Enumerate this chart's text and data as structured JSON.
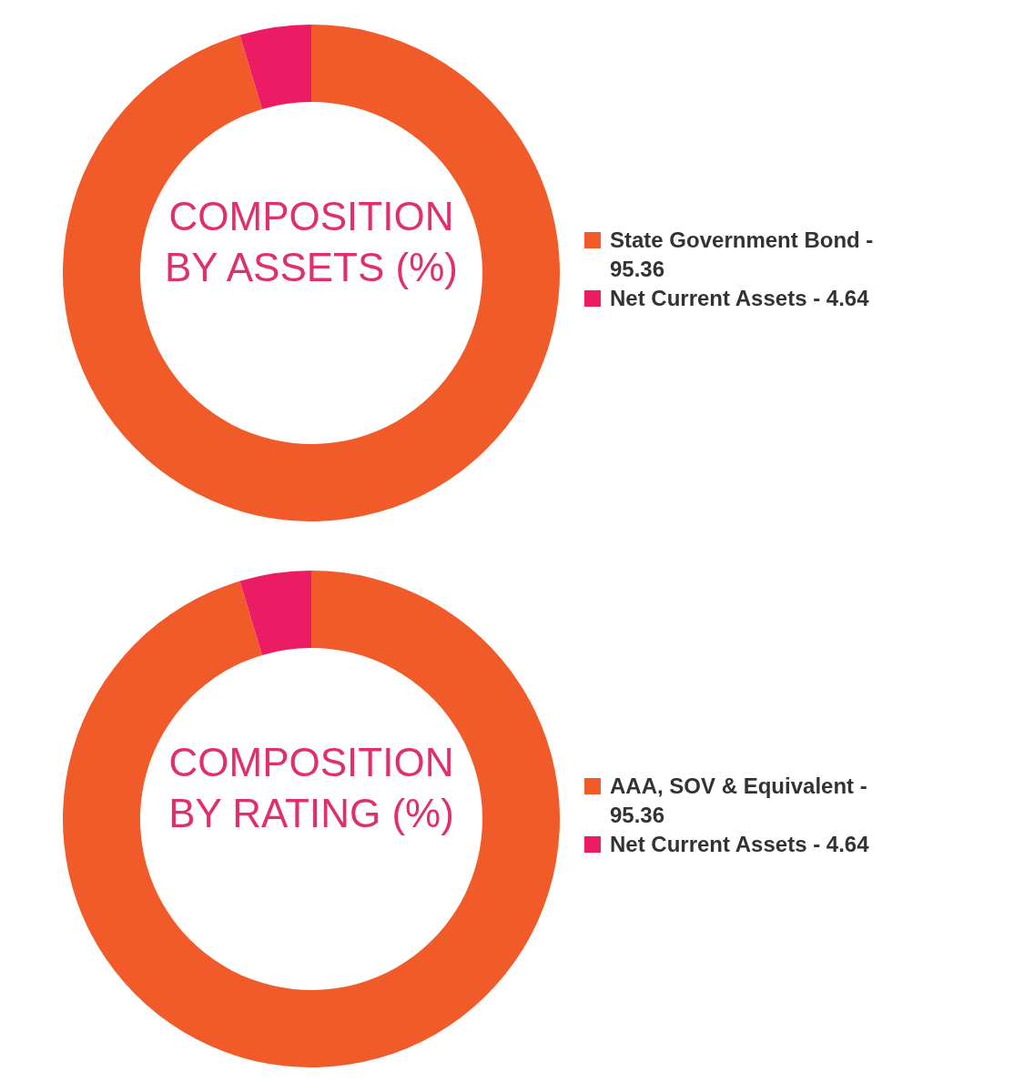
{
  "chart_data": [
    {
      "type": "donut",
      "title": "COMPOSITION BY ASSETS (%)",
      "categories": [
        "State Government Bond - 95.36",
        "Net Current Assets - 4.64"
      ],
      "values": [
        95.36,
        4.64
      ],
      "colors": [
        "#f15a29",
        "#ec1c64"
      ],
      "legend": "right"
    },
    {
      "type": "donut",
      "title": "COMPOSITION BY RATING (%)",
      "categories": [
        "AAA, SOV & Equivalent - 95.36",
        "Net Current Assets - 4.64"
      ],
      "values": [
        95.36,
        4.64
      ],
      "colors": [
        "#f15a29",
        "#ec1c64"
      ],
      "legend": "right"
    }
  ]
}
